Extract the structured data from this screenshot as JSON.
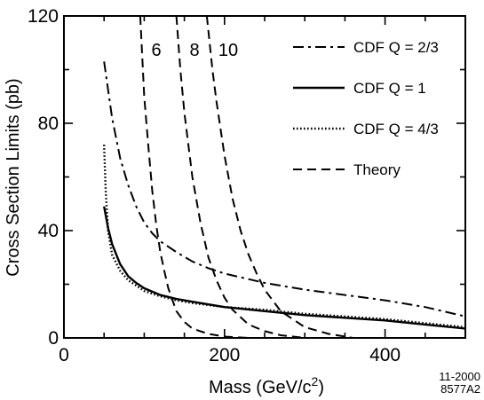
{
  "chart_data": {
    "type": "line",
    "xlabel": "Mass  (GeV/c",
    "xlabel_sup": "2",
    "xlabel_end": ")",
    "ylabel": "Cross Section Limits  (pb)",
    "xlim": [
      0,
      500
    ],
    "ylim": [
      0,
      120
    ],
    "x_ticks": [
      0,
      200,
      400
    ],
    "y_ticks": [
      0,
      40,
      80,
      120
    ],
    "grid": false,
    "legend_position": "top-right",
    "series": [
      {
        "name": "CDF Q = 2/3",
        "style": "dash-dot",
        "x": [
          50,
          60,
          70,
          80,
          90,
          100,
          110,
          120,
          140,
          160,
          180,
          200,
          250,
          300,
          350,
          400,
          450,
          500
        ],
        "y": [
          103,
          82,
          67,
          57,
          49,
          43,
          39,
          36,
          32,
          28.5,
          26,
          24,
          20.5,
          18,
          16,
          14,
          11.5,
          8
        ]
      },
      {
        "name": "CDF Q = 1",
        "style": "solid",
        "x": [
          50,
          55,
          60,
          70,
          80,
          90,
          100,
          120,
          140,
          160,
          200,
          250,
          300,
          350,
          400,
          450,
          500
        ],
        "y": [
          49,
          41,
          35,
          27.5,
          23,
          20.5,
          18.5,
          16,
          14.5,
          13.5,
          11.5,
          10,
          8.5,
          7.5,
          6.5,
          5,
          3.5
        ]
      },
      {
        "name": "CDF Q = 4/3",
        "style": "dotted",
        "x": [
          50,
          52,
          55,
          60,
          70,
          80,
          90,
          100,
          120,
          140,
          160,
          200,
          250,
          300,
          350,
          400,
          450,
          500
        ],
        "y": [
          72,
          55,
          40,
          31,
          25,
          21.5,
          19.5,
          17.5,
          15.5,
          14,
          13,
          11.5,
          10.5,
          9,
          8,
          7,
          5.5,
          4
        ]
      },
      {
        "name": "Theory",
        "label": "6",
        "style": "dashed",
        "x": [
          95,
          100,
          105,
          110,
          115,
          120,
          125,
          130,
          140,
          150,
          160,
          180,
          200,
          230
        ],
        "y": [
          120,
          90,
          72,
          55,
          42,
          32,
          25,
          18.5,
          10,
          6,
          3.5,
          1.5,
          0.5,
          0
        ]
      },
      {
        "name": "Theory",
        "label": "8",
        "style": "dashed",
        "x": [
          140,
          145,
          150,
          160,
          170,
          180,
          190,
          200,
          210,
          230,
          250,
          270,
          300
        ],
        "y": [
          120,
          100,
          84,
          60,
          43,
          30,
          21.5,
          15,
          10.5,
          5,
          2.5,
          1,
          0
        ]
      },
      {
        "name": "Theory",
        "label": "10",
        "style": "dashed",
        "x": [
          178,
          185,
          190,
          200,
          210,
          220,
          230,
          240,
          250,
          270,
          300,
          330,
          360
        ],
        "y": [
          120,
          100,
          88,
          68,
          52,
          40,
          31,
          24,
          18,
          10,
          4,
          1.5,
          0
        ]
      }
    ]
  },
  "stamp": {
    "line1": "11-2000",
    "line2": "8577A2"
  }
}
